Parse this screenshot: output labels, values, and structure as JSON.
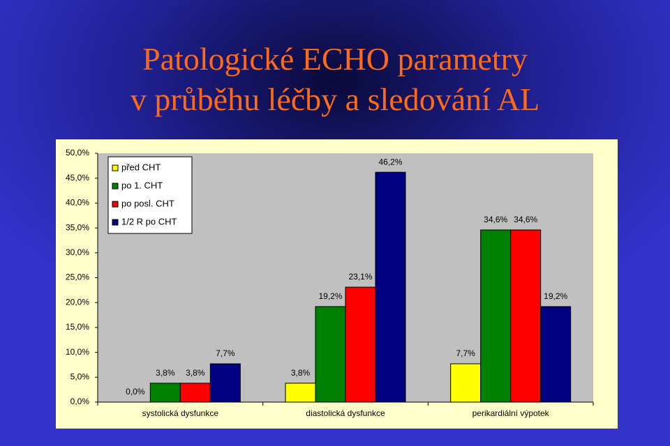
{
  "chart_data": {
    "type": "bar",
    "title": [
      "Patologické ECHO parametry",
      "v průběhu léčby a sledování AL"
    ],
    "categories": [
      "systolická dysfunkce",
      "diastolická dysfunkce",
      "perikardiální výpotek"
    ],
    "series": [
      {
        "name": "před CHT",
        "color": "#ffff00",
        "values": [
          0.0,
          3.8,
          7.7
        ],
        "value_labels": [
          "0,0%",
          "3,8%",
          "7,7%"
        ]
      },
      {
        "name": "po 1. CHT",
        "color": "#008000",
        "values": [
          3.8,
          19.2,
          34.6
        ],
        "value_labels": [
          "3,8%",
          "19,2%",
          "34,6%"
        ]
      },
      {
        "name": "po posl. CHT",
        "color": "#ff0000",
        "values": [
          3.8,
          23.1,
          34.6
        ],
        "value_labels": [
          "3,8%",
          "23,1%",
          "34,6%"
        ]
      },
      {
        "name": "1/2 R po CHT",
        "color": "#000080",
        "values": [
          7.7,
          46.2,
          19.2
        ],
        "value_labels": [
          "7,7%",
          "46,2%",
          "19,2%"
        ]
      }
    ],
    "ylim": [
      0,
      50
    ],
    "yticks": [
      {
        "value": 0,
        "label": "0,0%"
      },
      {
        "value": 5,
        "label": "5,0%"
      },
      {
        "value": 10,
        "label": "10,0%"
      },
      {
        "value": 15,
        "label": "15,0%"
      },
      {
        "value": 20,
        "label": "20,0%"
      },
      {
        "value": 25,
        "label": "25,0%"
      },
      {
        "value": 30,
        "label": "30,0%"
      },
      {
        "value": 35,
        "label": "35,0%"
      },
      {
        "value": 40,
        "label": "40,0%"
      },
      {
        "value": 45,
        "label": "45,0%"
      },
      {
        "value": 50,
        "label": "50,0%"
      }
    ],
    "grid": false,
    "legend": "top-left"
  }
}
